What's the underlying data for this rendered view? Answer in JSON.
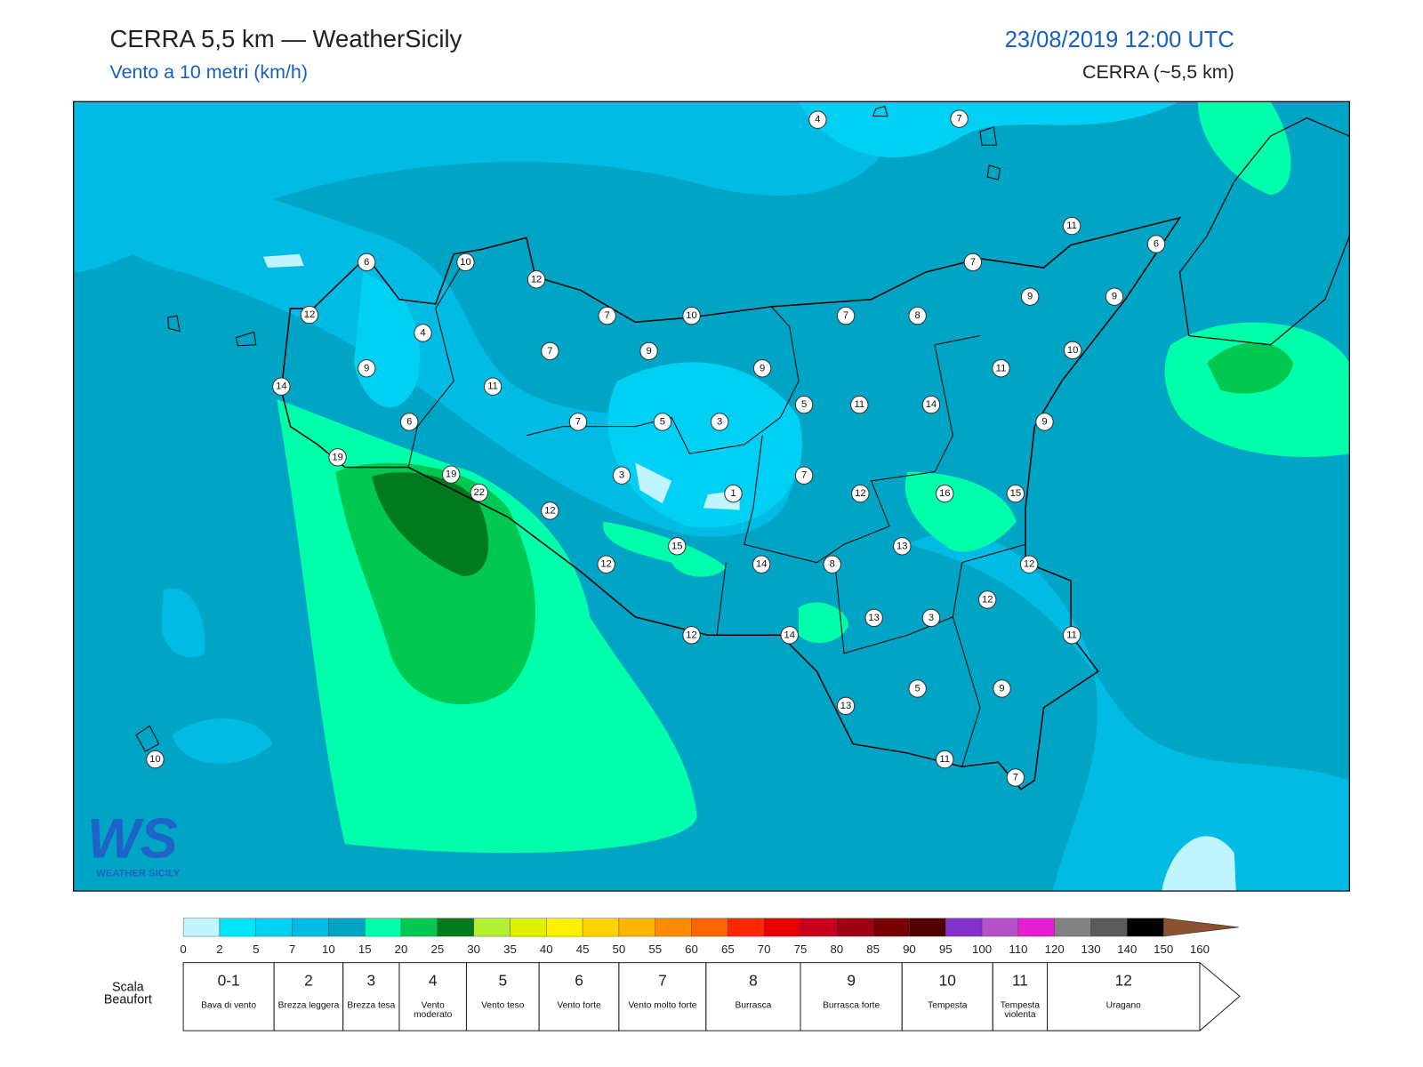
{
  "header": {
    "title": "CERRA 5,5 km — WeatherSicily",
    "subtitle": "Vento a 10 metri (km/h)",
    "datetime": "23/08/2019 12:00 UTC",
    "model": "CERRA (~5,5 km)"
  },
  "logo": {
    "mark": "WS",
    "text": "WEATHER SICILY"
  },
  "stations": [
    4,
    7,
    11,
    6,
    6,
    10,
    12,
    7,
    12,
    7,
    10,
    7,
    8,
    9,
    9,
    4,
    7,
    9,
    10,
    9,
    9,
    11,
    14,
    11,
    5,
    11,
    14,
    6,
    7,
    5,
    3,
    9,
    19,
    19,
    3,
    7,
    22,
    1,
    12,
    16,
    15,
    12,
    13,
    15,
    12,
    14,
    8,
    12,
    12,
    13,
    3,
    12,
    14,
    11,
    5,
    9,
    13,
    10,
    11,
    7
  ],
  "legend": {
    "ticks": [
      0,
      2,
      5,
      7,
      10,
      15,
      20,
      25,
      30,
      35,
      40,
      45,
      50,
      55,
      60,
      65,
      70,
      75,
      80,
      85,
      90,
      95,
      100,
      110,
      120,
      130,
      140,
      150,
      160
    ],
    "colors": [
      "#c0f4ff",
      "#00e4ff",
      "#00d0f4",
      "#00bce4",
      "#00a4c4",
      "#00ffaa",
      "#00c850",
      "#007a1e",
      "#b4f032",
      "#dcf000",
      "#fff000",
      "#ffd200",
      "#ffb400",
      "#ff8c00",
      "#ff6400",
      "#ff2800",
      "#e60000",
      "#c8001e",
      "#a00014",
      "#780000",
      "#500000",
      "#8232c8",
      "#b450c8",
      "#e61ed2",
      "#828282",
      "#5a5a5a",
      "#000000",
      "#8c5032",
      "#c88250"
    ]
  },
  "beaufort": {
    "title": "Scala Beaufort",
    "levels": [
      {
        "force": "0-1",
        "name": "Bava di vento"
      },
      {
        "force": "2",
        "name": "Brezza leggera"
      },
      {
        "force": "3",
        "name": "Brezza tesa"
      },
      {
        "force": "4",
        "name": "Vento moderato"
      },
      {
        "force": "5",
        "name": "Vento teso"
      },
      {
        "force": "6",
        "name": "Vento forte"
      },
      {
        "force": "7",
        "name": "Vento molto forte"
      },
      {
        "force": "8",
        "name": "Burrasca"
      },
      {
        "force": "9",
        "name": "Burrasca forte"
      },
      {
        "force": "10",
        "name": "Tempesta"
      },
      {
        "force": "11",
        "name": "Tempesta violenta"
      },
      {
        "force": "12",
        "name": "Uragano"
      }
    ]
  }
}
